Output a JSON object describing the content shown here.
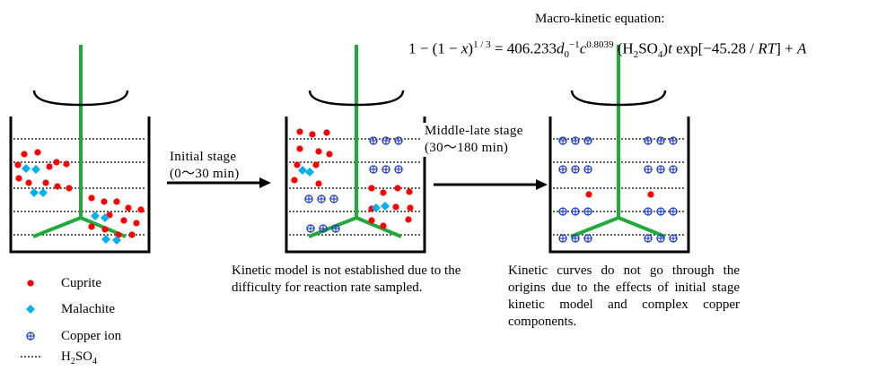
{
  "heading": "Macro-kinetic equation:",
  "equation": {
    "lhs_base": "1 − (1 − ",
    "lhs_x": "x",
    "lhs_close": ")",
    "lhs_exp": "1 / 3",
    "rhs_eq": " = 406.233",
    "rhs_d": "d",
    "rhs_d_sub": "0",
    "rhs_d_exp": "−1",
    "rhs_c": "c",
    "rhs_c_exp": "0.8039",
    "rhs_acid_open": " (H",
    "rhs_acid_sub2": "2",
    "rhs_acid_mid": "SO",
    "rhs_acid_sub4": "4",
    "rhs_acid_close": ")",
    "rhs_t": "t",
    "rhs_exp_text": " exp[−45.28 / ",
    "rhs_RT": "RT",
    "rhs_tail": "] + ",
    "rhs_A": "A"
  },
  "stages": {
    "initial_line1": "Initial  stage",
    "initial_line2": "(0～30  min)",
    "middle_line1": "Middle-late  stage",
    "middle_line2": "(30～180  min)"
  },
  "captions": {
    "left": "Kinetic model is not established due to the difficulty for reaction rate sampled.",
    "right": "Kinetic curves do not go through the origins due to the effects of initial stage kinetic model and complex copper components."
  },
  "legend": {
    "cuprite": "Cuprite",
    "malachite": "Malachite",
    "copper_ion": "Copper ion",
    "acid_base": "H",
    "acid_sub2": "2",
    "acid_mid": "SO",
    "acid_sub4": "4"
  },
  "colors": {
    "cuprite": "#ff0000",
    "malachite": "#00b0f0",
    "copper_ion": "#1f3fbf",
    "stirrer": "#1faa3a",
    "line": "#000000"
  }
}
